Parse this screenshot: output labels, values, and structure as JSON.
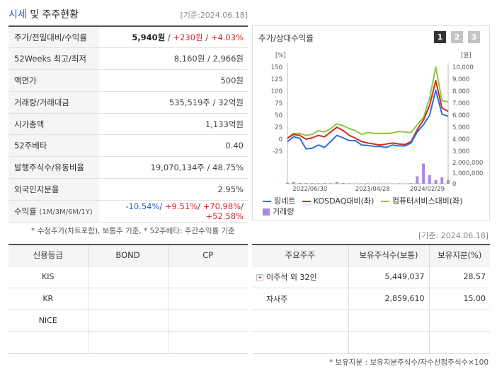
{
  "header": {
    "title_accent": "시세",
    "title_rest": " 및 주주현황",
    "date": "[기준:2024.06.18]"
  },
  "info": {
    "price_label": "주가/전일대비/수익률",
    "price": "5,940원",
    "price_sep1": " / ",
    "change": "+230원",
    "price_sep2": " / ",
    "change_pct": "+4.03%",
    "w52_label": "52Weeks 최고/최저",
    "w52_value": "8,160원 / 2,966원",
    "par_label": "액면가",
    "par_value": "500원",
    "volume_label": "거래량/거래대금",
    "volume_value": "535,519주 / 32억원",
    "mcap_label": "시가총액",
    "mcap_value": "1,133억원",
    "beta_label": "52주베타",
    "beta_value": "0.40",
    "shares_label": "발행주식수/유동비율",
    "shares_value": "19,070,134주 / 48.75%",
    "foreign_label": "외국인지분율",
    "foreign_value": "2.95%",
    "return_label": "수익률",
    "return_period": "(1M/3M/6M/1Y)",
    "return_1m": "-10.54%",
    "return_3m": "+9.51%",
    "return_6m": "+70.98%",
    "return_1y": "+52.58%",
    "sep": "/ ",
    "note": "* 수정주가(차트포함), 보통주 기준, * 52주베타: 주간수익률 기준"
  },
  "chart": {
    "title": "주가/상대수익률",
    "buttons": [
      "1",
      "2",
      "3"
    ],
    "left_unit": "[%]",
    "right_unit": "[원]",
    "legend": {
      "stock": "링네트",
      "kosdaq": "KOSDAQ대비(좌)",
      "sector": "컴퓨터서비스대비(좌)",
      "volume": "거래량"
    },
    "colors": {
      "stock": "#2f6fd6",
      "kosdaq": "#d42a20",
      "sector": "#8dc63f",
      "volume": "#a98be0"
    }
  },
  "chart_data": {
    "type": "line",
    "x_ticks": [
      "2022/06/30",
      "2023/04/28",
      "2024/02/29"
    ],
    "y_left_ticks": [
      "150",
      "125",
      "100",
      "75",
      "50",
      "25",
      "0",
      "-25"
    ],
    "y_right_ticks": [
      "10,000",
      "9,000",
      "8,000",
      "7,000",
      "6,000",
      "5,000",
      "4,000",
      "3,000"
    ],
    "y2_ticks": [
      "2,000,000",
      "1,000,000",
      "0"
    ],
    "ylim_left": [
      -25,
      150
    ],
    "ylim_right": [
      3000,
      10000
    ],
    "volume_lim": [
      0,
      2000000
    ],
    "series": [
      {
        "name": "링네트",
        "key": "stock",
        "axis": "left",
        "values": [
          -5,
          5,
          2,
          -20,
          -19,
          -12,
          -17,
          -5,
          8,
          3,
          -3,
          -3,
          -12,
          -13,
          -15,
          -15,
          -17,
          -12,
          -14,
          -14,
          -8,
          15,
          30,
          50,
          102,
          52,
          48
        ]
      },
      {
        "name": "KOSDAQ대비(좌)",
        "key": "kosdaq",
        "axis": "left",
        "values": [
          2,
          10,
          8,
          0,
          3,
          8,
          5,
          15,
          25,
          18,
          8,
          2,
          -5,
          -8,
          -10,
          -12,
          -10,
          -8,
          -10,
          -11,
          -5,
          20,
          40,
          70,
          122,
          65,
          58
        ]
      },
      {
        "name": "컴퓨터서비스대비(좌)",
        "key": "sector",
        "axis": "left",
        "values": [
          3,
          12,
          12,
          8,
          10,
          18,
          15,
          22,
          32,
          28,
          22,
          18,
          10,
          14,
          12,
          12,
          12,
          13,
          16,
          15,
          14,
          30,
          45,
          85,
          150,
          80,
          78
        ]
      }
    ],
    "volume": {
      "name": "거래량",
      "values": [
        100000,
        180000,
        80000,
        60000,
        50000,
        50000,
        60000,
        50000,
        180000,
        70000,
        40000,
        30000,
        30000,
        50000,
        30000,
        30000,
        30000,
        30000,
        40000,
        20000,
        60000,
        700000,
        1900000,
        800000,
        350000,
        600000,
        350000
      ]
    }
  },
  "credit": {
    "headers": [
      "신용등급",
      "BOND",
      "CP"
    ],
    "rows": [
      [
        "KIS",
        "",
        ""
      ],
      [
        "KR",
        "",
        ""
      ],
      [
        "NICE",
        "",
        ""
      ],
      [
        "",
        "",
        ""
      ]
    ]
  },
  "date2": "[기준: 2024.06.18]",
  "holders": {
    "headers": [
      "주요주주",
      "보유주식수(보통)",
      "보유지분(%)"
    ],
    "rows": [
      {
        "name": "이주석 외 32인",
        "shares": "5,449,037",
        "pct": "28.57",
        "expandable": true
      },
      {
        "name": "자사주",
        "shares": "2,859,610",
        "pct": "15.00",
        "expandable": false
      },
      {
        "name": "",
        "shares": "",
        "pct": "",
        "expandable": false
      },
      {
        "name": "",
        "shares": "",
        "pct": "",
        "expandable": false
      }
    ],
    "note": "* 보유지분 : 보유지분주식수/자수산정주식수×100"
  }
}
